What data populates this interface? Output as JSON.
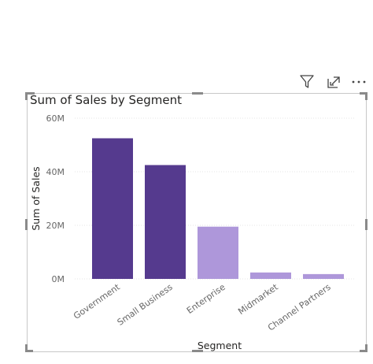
{
  "toolbar": {
    "icons": [
      "filter-icon",
      "focus-mode-icon",
      "more-options-icon"
    ]
  },
  "chart_data": {
    "type": "bar",
    "title": "Sum of Sales by Segment",
    "xlabel": "Segment",
    "ylabel": "Sum of Sales",
    "categories": [
      "Government",
      "Small Business",
      "Enterprise",
      "Midmarket",
      "Channel Partners"
    ],
    "values": [
      52.5,
      42.5,
      19.5,
      2.4,
      1.8
    ],
    "yticks": [
      0,
      20,
      40,
      60
    ],
    "ytick_labels": [
      "0M",
      "20M",
      "40M",
      "60M"
    ],
    "ylim": [
      0,
      60
    ],
    "units": "M",
    "grid": true,
    "legend": "none",
    "colors": [
      "#553A8E",
      "#553A8E",
      "#AE97DA",
      "#AE97DA",
      "#AE97DA"
    ]
  }
}
